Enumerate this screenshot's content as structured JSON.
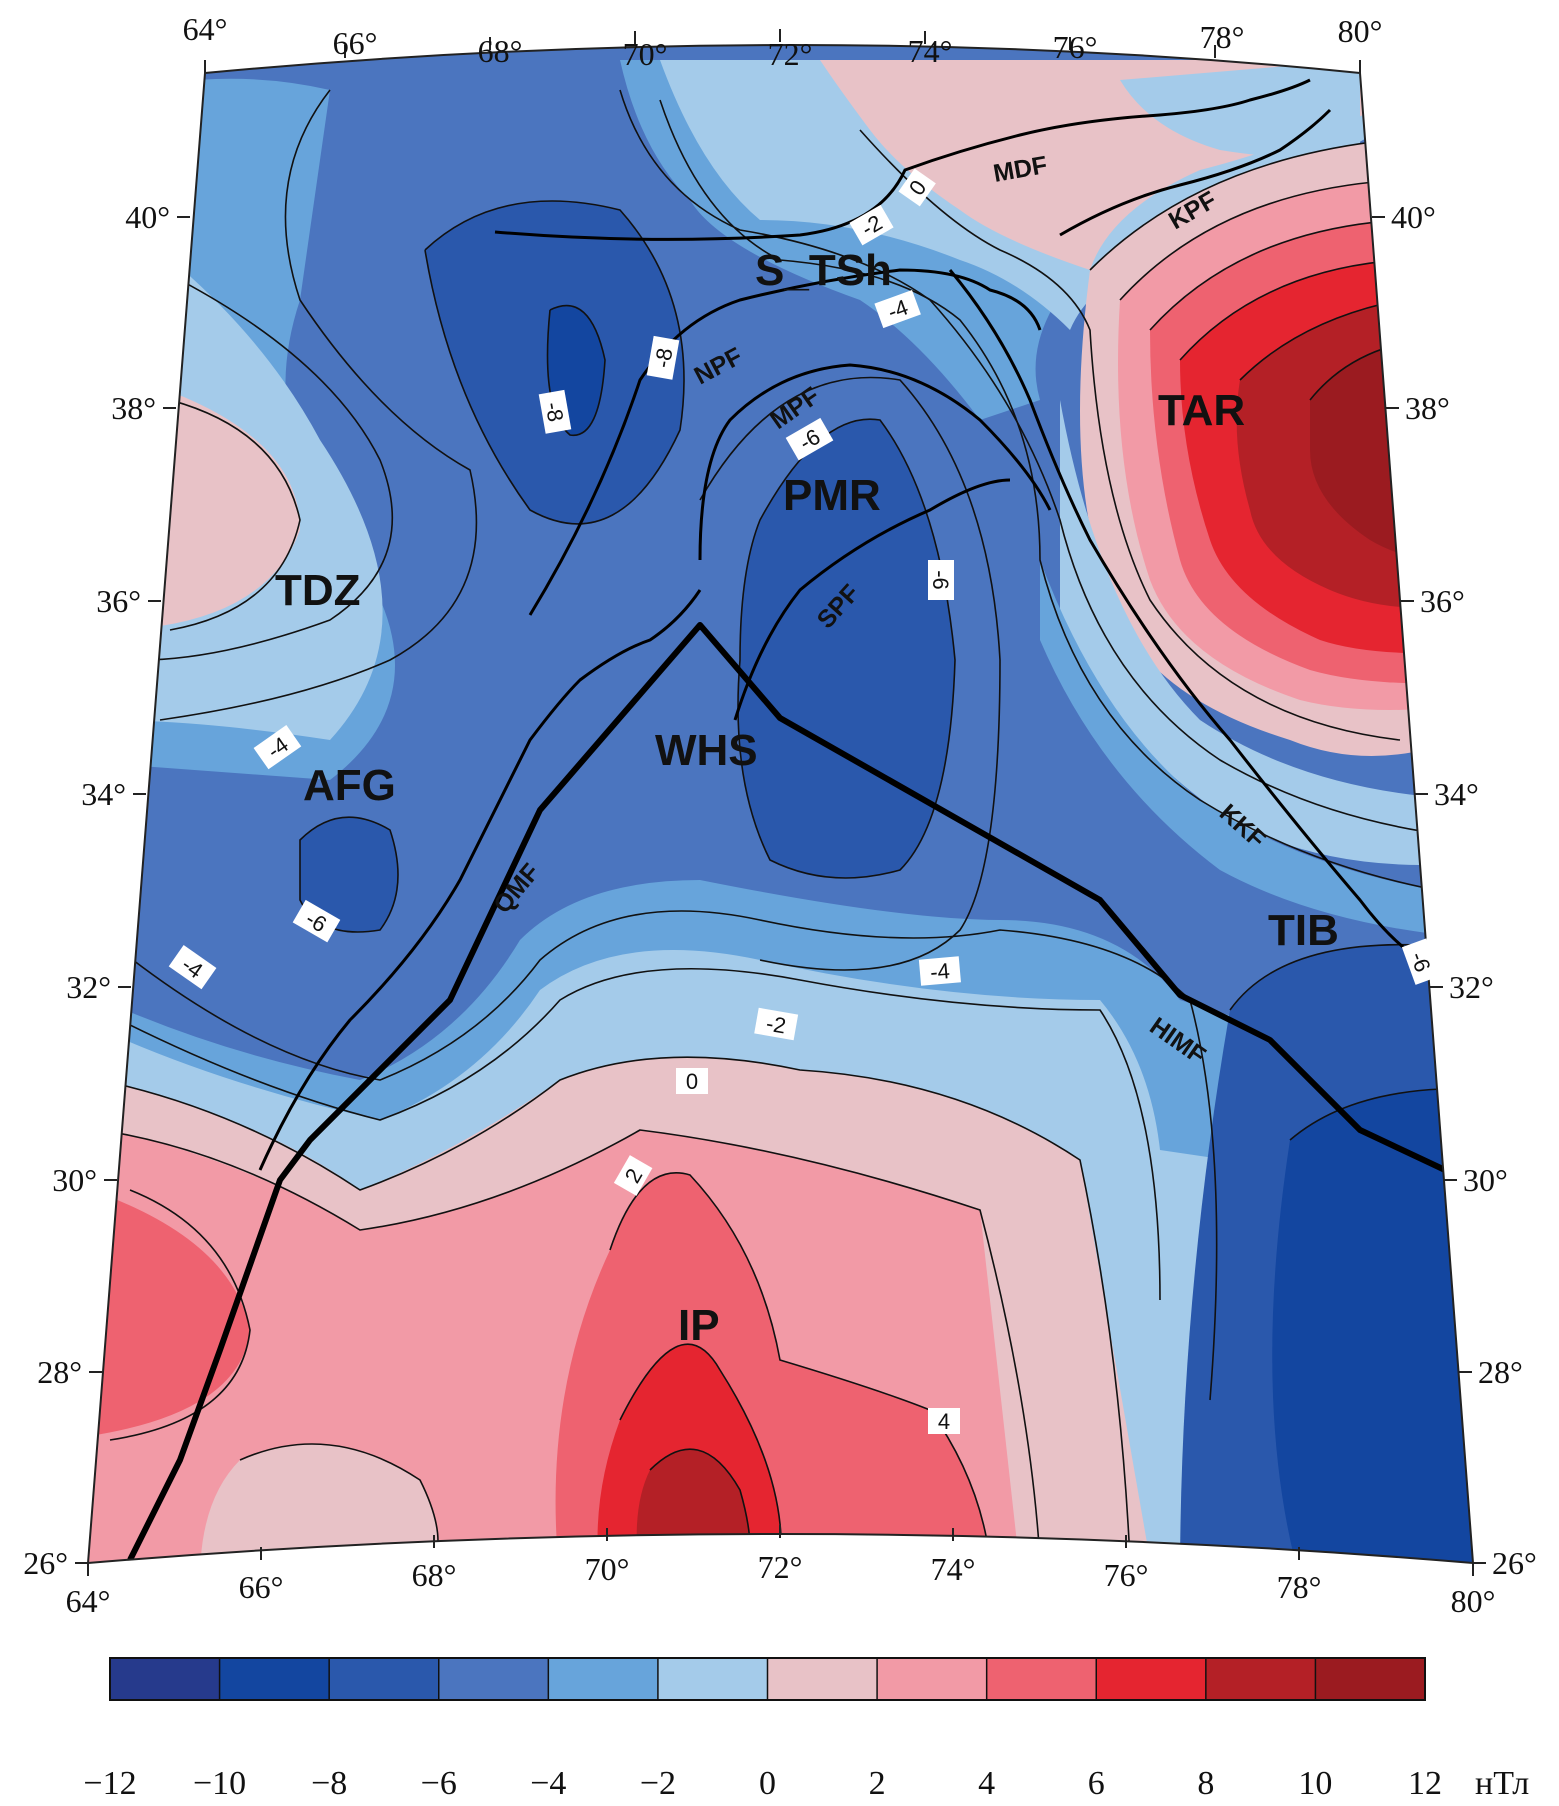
{
  "map": {
    "lon_labels": [
      "64°",
      "66°",
      "68°",
      "70°",
      "72°",
      "74°",
      "76°",
      "78°",
      "80°"
    ],
    "lat_labels": [
      "26°",
      "28°",
      "30°",
      "32°",
      "34°",
      "36°",
      "38°",
      "40°"
    ],
    "regions": [
      "TDZ",
      "AFG",
      "WHS",
      "PMR",
      "S_TSh",
      "TAR",
      "TIB",
      "IP"
    ],
    "faults": [
      "MDF",
      "KPF",
      "NPF",
      "MPF",
      "SPF",
      "QMF",
      "KKF",
      "HIMF"
    ],
    "contour_labels": [
      "0",
      "-2",
      "-4",
      "-8",
      "-8",
      "-6",
      "-6",
      "-4",
      "-6",
      "-4",
      "-2",
      "0",
      "2",
      "4",
      "-4",
      "-6"
    ]
  },
  "colorbar": {
    "ticks": [
      "−12",
      "−10",
      "−8",
      "−6",
      "−4",
      "−2",
      "0",
      "2",
      "4",
      "6",
      "8",
      "10",
      "12"
    ],
    "unit": "нТл",
    "colors": [
      "#263a8c",
      "#1346a0",
      "#2a58ac",
      "#4b75bf",
      "#67a4db",
      "#a4cbea",
      "#e8c2c7",
      "#f29aa6",
      "#ee6270",
      "#e52530",
      "#b42026",
      "#9b1b20"
    ]
  }
}
